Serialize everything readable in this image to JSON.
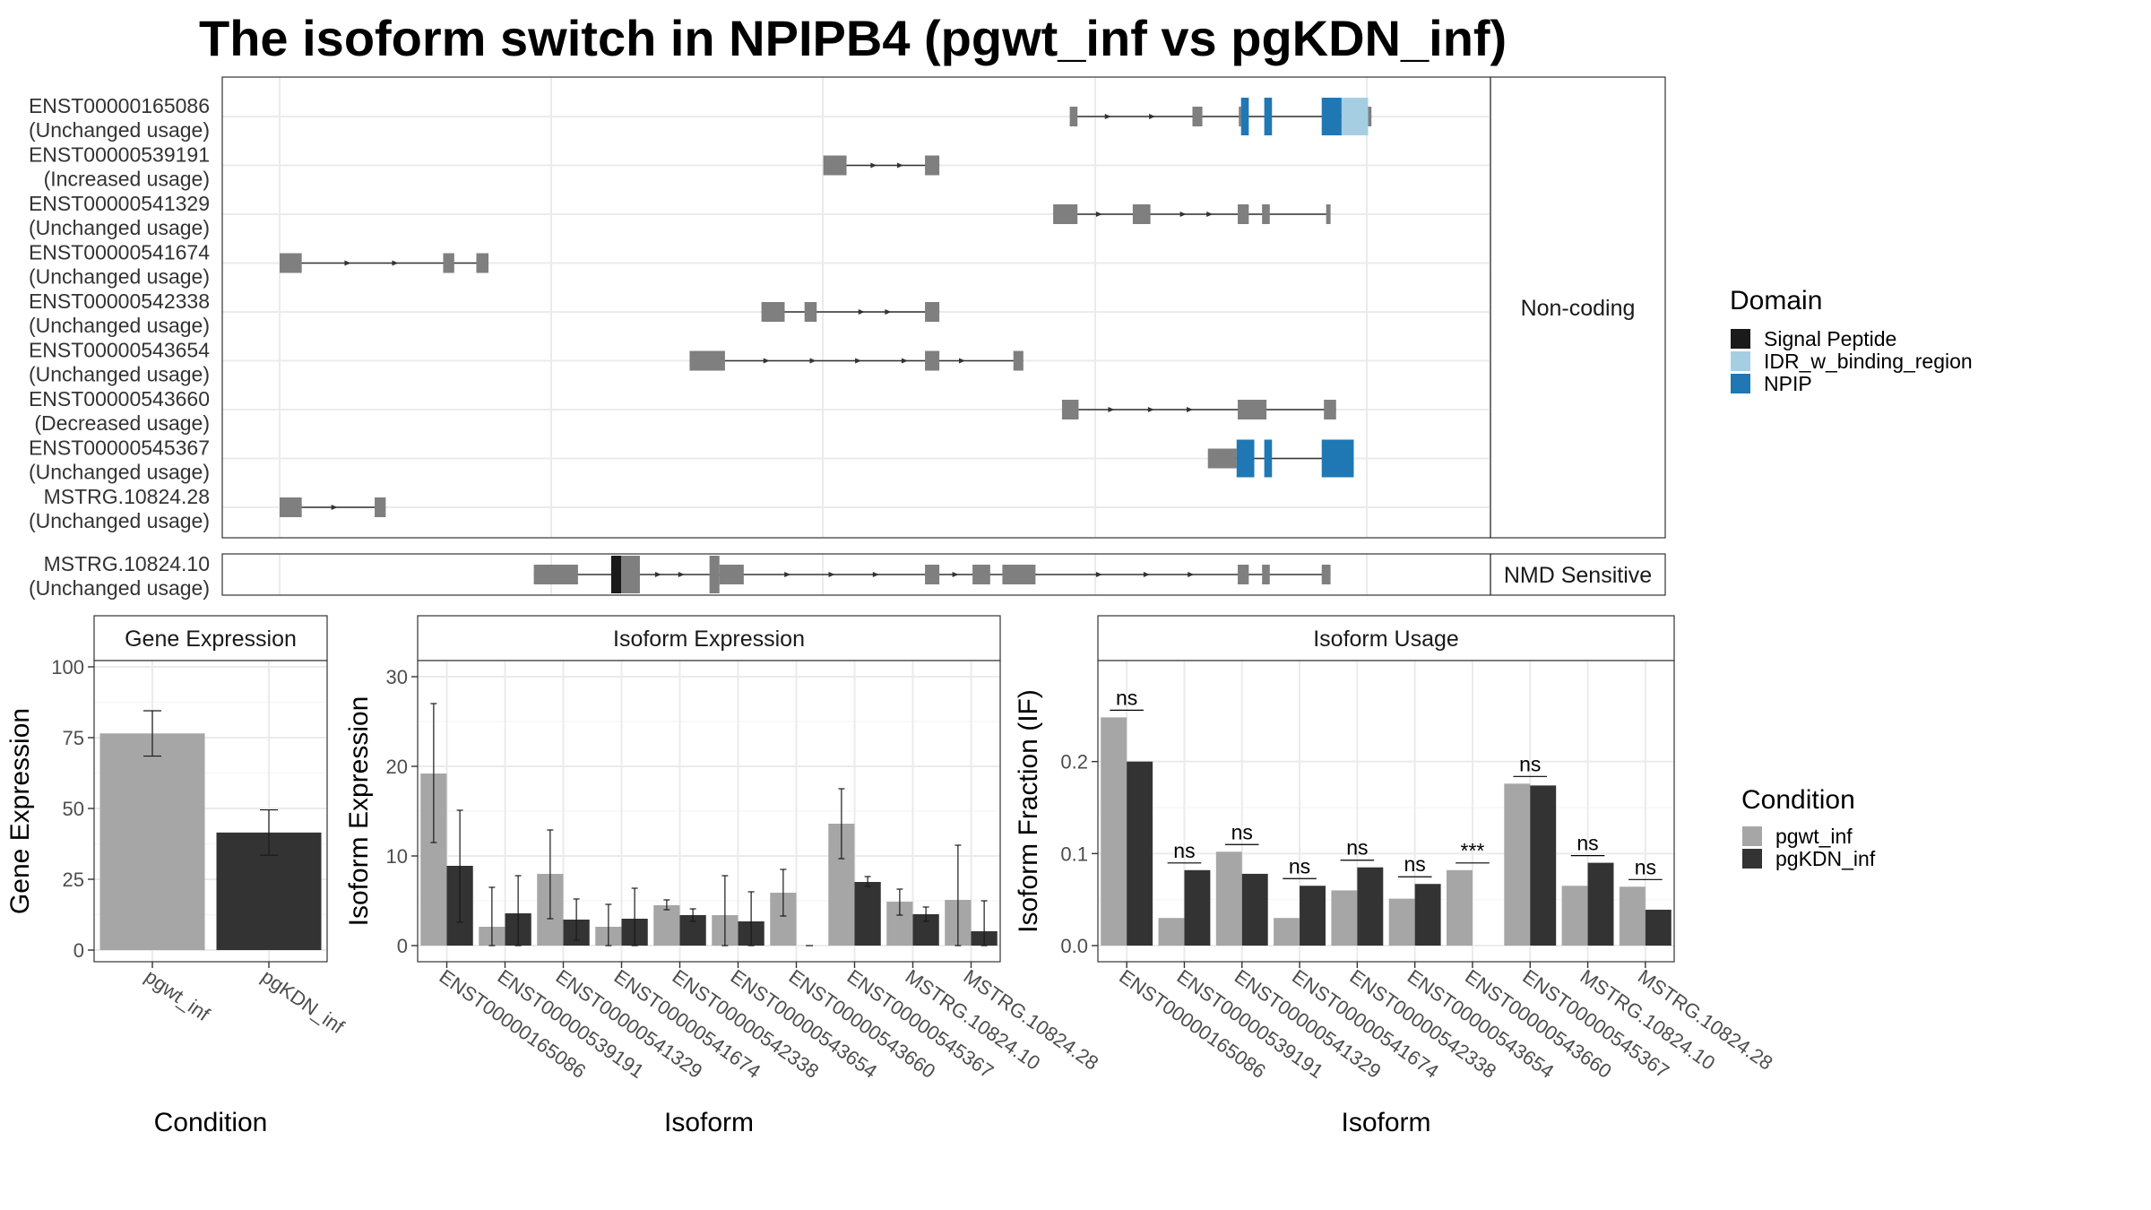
{
  "title": "The isoform switch in NPIPB4 (pgwt_inf vs pgKDN_inf)",
  "colors": {
    "exon": "#7f7f7f",
    "signal_peptide": "#1a1a1a",
    "idr": "#a6cee3",
    "npip": "#1f78b4",
    "pgwt_inf": "#a6a6a6",
    "pgKDN_inf": "#333333",
    "grid_major": "#ebebeb",
    "panel_border": "#333333"
  },
  "chart_data": [
    {
      "type": "gene-structure",
      "facets": [
        "Non-coding",
        "NMD Sensitive"
      ],
      "domain_legend": {
        "title": "Domain",
        "entries": [
          "Signal Peptide",
          "IDR_w_binding_region",
          "NPIP"
        ]
      },
      "transcripts": [
        {
          "id": "ENST00000165086",
          "status": "(Unchanged usage)",
          "facet": "Non-coding",
          "exons": [
            [
              0.715,
              0.722,
              "exon"
            ],
            [
              0.826,
              0.835,
              "exon"
            ],
            [
              0.868,
              0.87,
              "exon"
            ],
            [
              0.87,
              0.877,
              "npip"
            ],
            [
              0.891,
              0.898,
              "npip"
            ],
            [
              0.943,
              0.961,
              "npip"
            ],
            [
              0.961,
              0.985,
              "idr"
            ],
            [
              0.985,
              0.988,
              "exon"
            ]
          ],
          "arrows": [
            0.75,
            0.79
          ]
        },
        {
          "id": "ENST00000539191",
          "status": "(Increased usage)",
          "facet": "Non-coding",
          "exons": [
            [
              0.492,
              0.513,
              "exon"
            ],
            [
              0.584,
              0.597,
              "exon"
            ]
          ],
          "arrows": [
            0.538,
            0.562
          ]
        },
        {
          "id": "ENST00000541329",
          "status": "(Unchanged usage)",
          "facet": "Non-coding",
          "exons": [
            [
              0.7,
              0.722,
              "exon"
            ],
            [
              0.772,
              0.788,
              "exon"
            ],
            [
              0.867,
              0.877,
              "exon"
            ],
            [
              0.889,
              0.896,
              "exon"
            ],
            [
              0.947,
              0.951,
              "exon"
            ]
          ],
          "arrows": [
            0.742,
            0.818,
            0.842
          ]
        },
        {
          "id": "ENST00000541674",
          "status": "(Unchanged usage)",
          "facet": "Non-coding",
          "exons": [
            [
              0.0,
              0.02,
              "exon"
            ],
            [
              0.148,
              0.158,
              "exon"
            ],
            [
              0.178,
              0.189,
              "exon"
            ]
          ],
          "arrows": [
            0.062,
            0.105
          ]
        },
        {
          "id": "ENST00000542338",
          "status": "(Unchanged usage)",
          "facet": "Non-coding",
          "exons": [
            [
              0.436,
              0.457,
              "exon"
            ],
            [
              0.475,
              0.486,
              "exon"
            ],
            [
              0.584,
              0.597,
              "exon"
            ]
          ],
          "arrows": [
            0.527,
            0.551
          ]
        },
        {
          "id": "ENST00000543654",
          "status": "(Unchanged usage)",
          "facet": "Non-coding",
          "exons": [
            [
              0.371,
              0.403,
              "exon"
            ],
            [
              0.584,
              0.597,
              "exon"
            ],
            [
              0.664,
              0.673,
              "exon"
            ]
          ],
          "arrows": [
            0.441,
            0.483,
            0.524,
            0.566,
            0.618
          ]
        },
        {
          "id": "ENST00000543660",
          "status": "(Decreased usage)",
          "facet": "Non-coding",
          "exons": [
            [
              0.708,
              0.723,
              "exon"
            ],
            [
              0.867,
              0.893,
              "exon"
            ],
            [
              0.945,
              0.956,
              "exon"
            ]
          ],
          "arrows": [
            0.753,
            0.789,
            0.824
          ]
        },
        {
          "id": "ENST00000545367",
          "status": "(Unchanged usage)",
          "facet": "Non-coding",
          "exons": [
            [
              0.84,
              0.866,
              "exon"
            ],
            [
              0.866,
              0.882,
              "npip"
            ],
            [
              0.891,
              0.898,
              "npip"
            ],
            [
              0.943,
              0.972,
              "npip"
            ]
          ],
          "arrows": []
        },
        {
          "id": "MSTRG.10824.28",
          "status": "(Unchanged usage)",
          "facet": "Non-coding",
          "exons": [
            [
              0.0,
              0.02,
              "exon"
            ],
            [
              0.086,
              0.096,
              "exon"
            ]
          ],
          "arrows": [
            0.05
          ]
        },
        {
          "id": "MSTRG.10824.10",
          "status": "(Unchanged usage)",
          "facet": "NMD Sensitive",
          "exons": [
            [
              0.23,
              0.27,
              "exon"
            ],
            [
              0.3,
              0.309,
              "signal_peptide"
            ],
            [
              0.309,
              0.326,
              "exon"
            ],
            [
              0.389,
              0.398,
              "exon"
            ],
            [
              0.398,
              0.42,
              "exon"
            ],
            [
              0.584,
              0.597,
              "exon"
            ],
            [
              0.627,
              0.643,
              "exon"
            ],
            [
              0.654,
              0.684,
              "exon"
            ],
            [
              0.867,
              0.877,
              "exon"
            ],
            [
              0.889,
              0.896,
              "exon"
            ],
            [
              0.943,
              0.951,
              "exon"
            ]
          ],
          "arrows": [
            0.343,
            0.364,
            0.46,
            0.5,
            0.54,
            0.612,
            0.742,
            0.785,
            0.825
          ]
        }
      ]
    },
    {
      "type": "bar",
      "title": "Gene Expression",
      "xlabel": "Condition",
      "ylabel": "Gene Expression",
      "ylim": [
        0,
        100
      ],
      "yticks": [
        0,
        25,
        50,
        75,
        100
      ],
      "categories": [
        "pgwt_inf",
        "pgKDN_inf"
      ],
      "values": [
        76.5,
        41.5
      ],
      "error_low": [
        68.5,
        33.5
      ],
      "error_high": [
        84.5,
        49.5
      ]
    },
    {
      "type": "bar",
      "title": "Isoform Expression",
      "xlabel": "Isoform",
      "ylabel": "Isoform Expression",
      "ylim": [
        0,
        30
      ],
      "yticks": [
        0,
        10,
        20,
        30
      ],
      "categories": [
        "ENST00000165086",
        "ENST00000539191",
        "ENST00000541329",
        "ENST00000541674",
        "ENST00000542338",
        "ENST00000543654",
        "ENST00000543660",
        "ENST00000545367",
        "MSTRG.10824.10",
        "MSTRG.10824.28"
      ],
      "series": [
        {
          "name": "pgwt_inf",
          "values": [
            19.2,
            2.1,
            8.0,
            2.1,
            4.5,
            3.4,
            5.9,
            13.6,
            4.9,
            5.1
          ],
          "error_low": [
            11.5,
            0.0,
            3.0,
            0.0,
            4.0,
            0.0,
            3.3,
            9.7,
            3.4,
            0.0
          ],
          "error_high": [
            27.0,
            6.5,
            12.9,
            4.6,
            5.1,
            7.8,
            8.5,
            17.5,
            6.3,
            11.2
          ]
        },
        {
          "name": "pgKDN_inf",
          "values": [
            8.9,
            3.6,
            2.9,
            3.0,
            3.4,
            2.7,
            0.0,
            7.1,
            3.5,
            1.6
          ],
          "error_low": [
            2.6,
            0.0,
            0.6,
            0.0,
            2.7,
            0.0,
            0.0,
            6.6,
            2.7,
            0.0
          ],
          "error_high": [
            15.1,
            7.8,
            5.2,
            6.4,
            4.1,
            6.0,
            0.0,
            7.7,
            4.3,
            5.0
          ]
        }
      ]
    },
    {
      "type": "bar",
      "title": "Isoform Usage",
      "xlabel": "Isoform",
      "ylabel": "Isoform Fraction (IF)",
      "ylim": [
        0,
        0.3
      ],
      "yticks": [
        0.0,
        0.1,
        0.2
      ],
      "ytick_labels": [
        "0.0",
        "0.1",
        "0.2"
      ],
      "categories": [
        "ENST00000165086",
        "ENST00000539191",
        "ENST00000541329",
        "ENST00000541674",
        "ENST00000542338",
        "ENST00000543654",
        "ENST00000543660",
        "ENST00000545367",
        "MSTRG.10824.10",
        "MSTRG.10824.28"
      ],
      "series": [
        {
          "name": "pgwt_inf",
          "values": [
            0.248,
            0.03,
            0.102,
            0.03,
            0.06,
            0.051,
            0.082,
            0.176,
            0.065,
            0.064
          ]
        },
        {
          "name": "pgKDN_inf",
          "values": [
            0.2,
            0.082,
            0.078,
            0.065,
            0.085,
            0.067,
            0.0,
            0.174,
            0.09,
            0.039
          ]
        }
      ],
      "significance": [
        "ns",
        "ns",
        "ns",
        "ns",
        "ns",
        "ns",
        "***",
        "ns",
        "ns",
        "ns"
      ]
    }
  ],
  "condition_legend": {
    "title": "Condition",
    "entries": [
      "pgwt_inf",
      "pgKDN_inf"
    ]
  }
}
